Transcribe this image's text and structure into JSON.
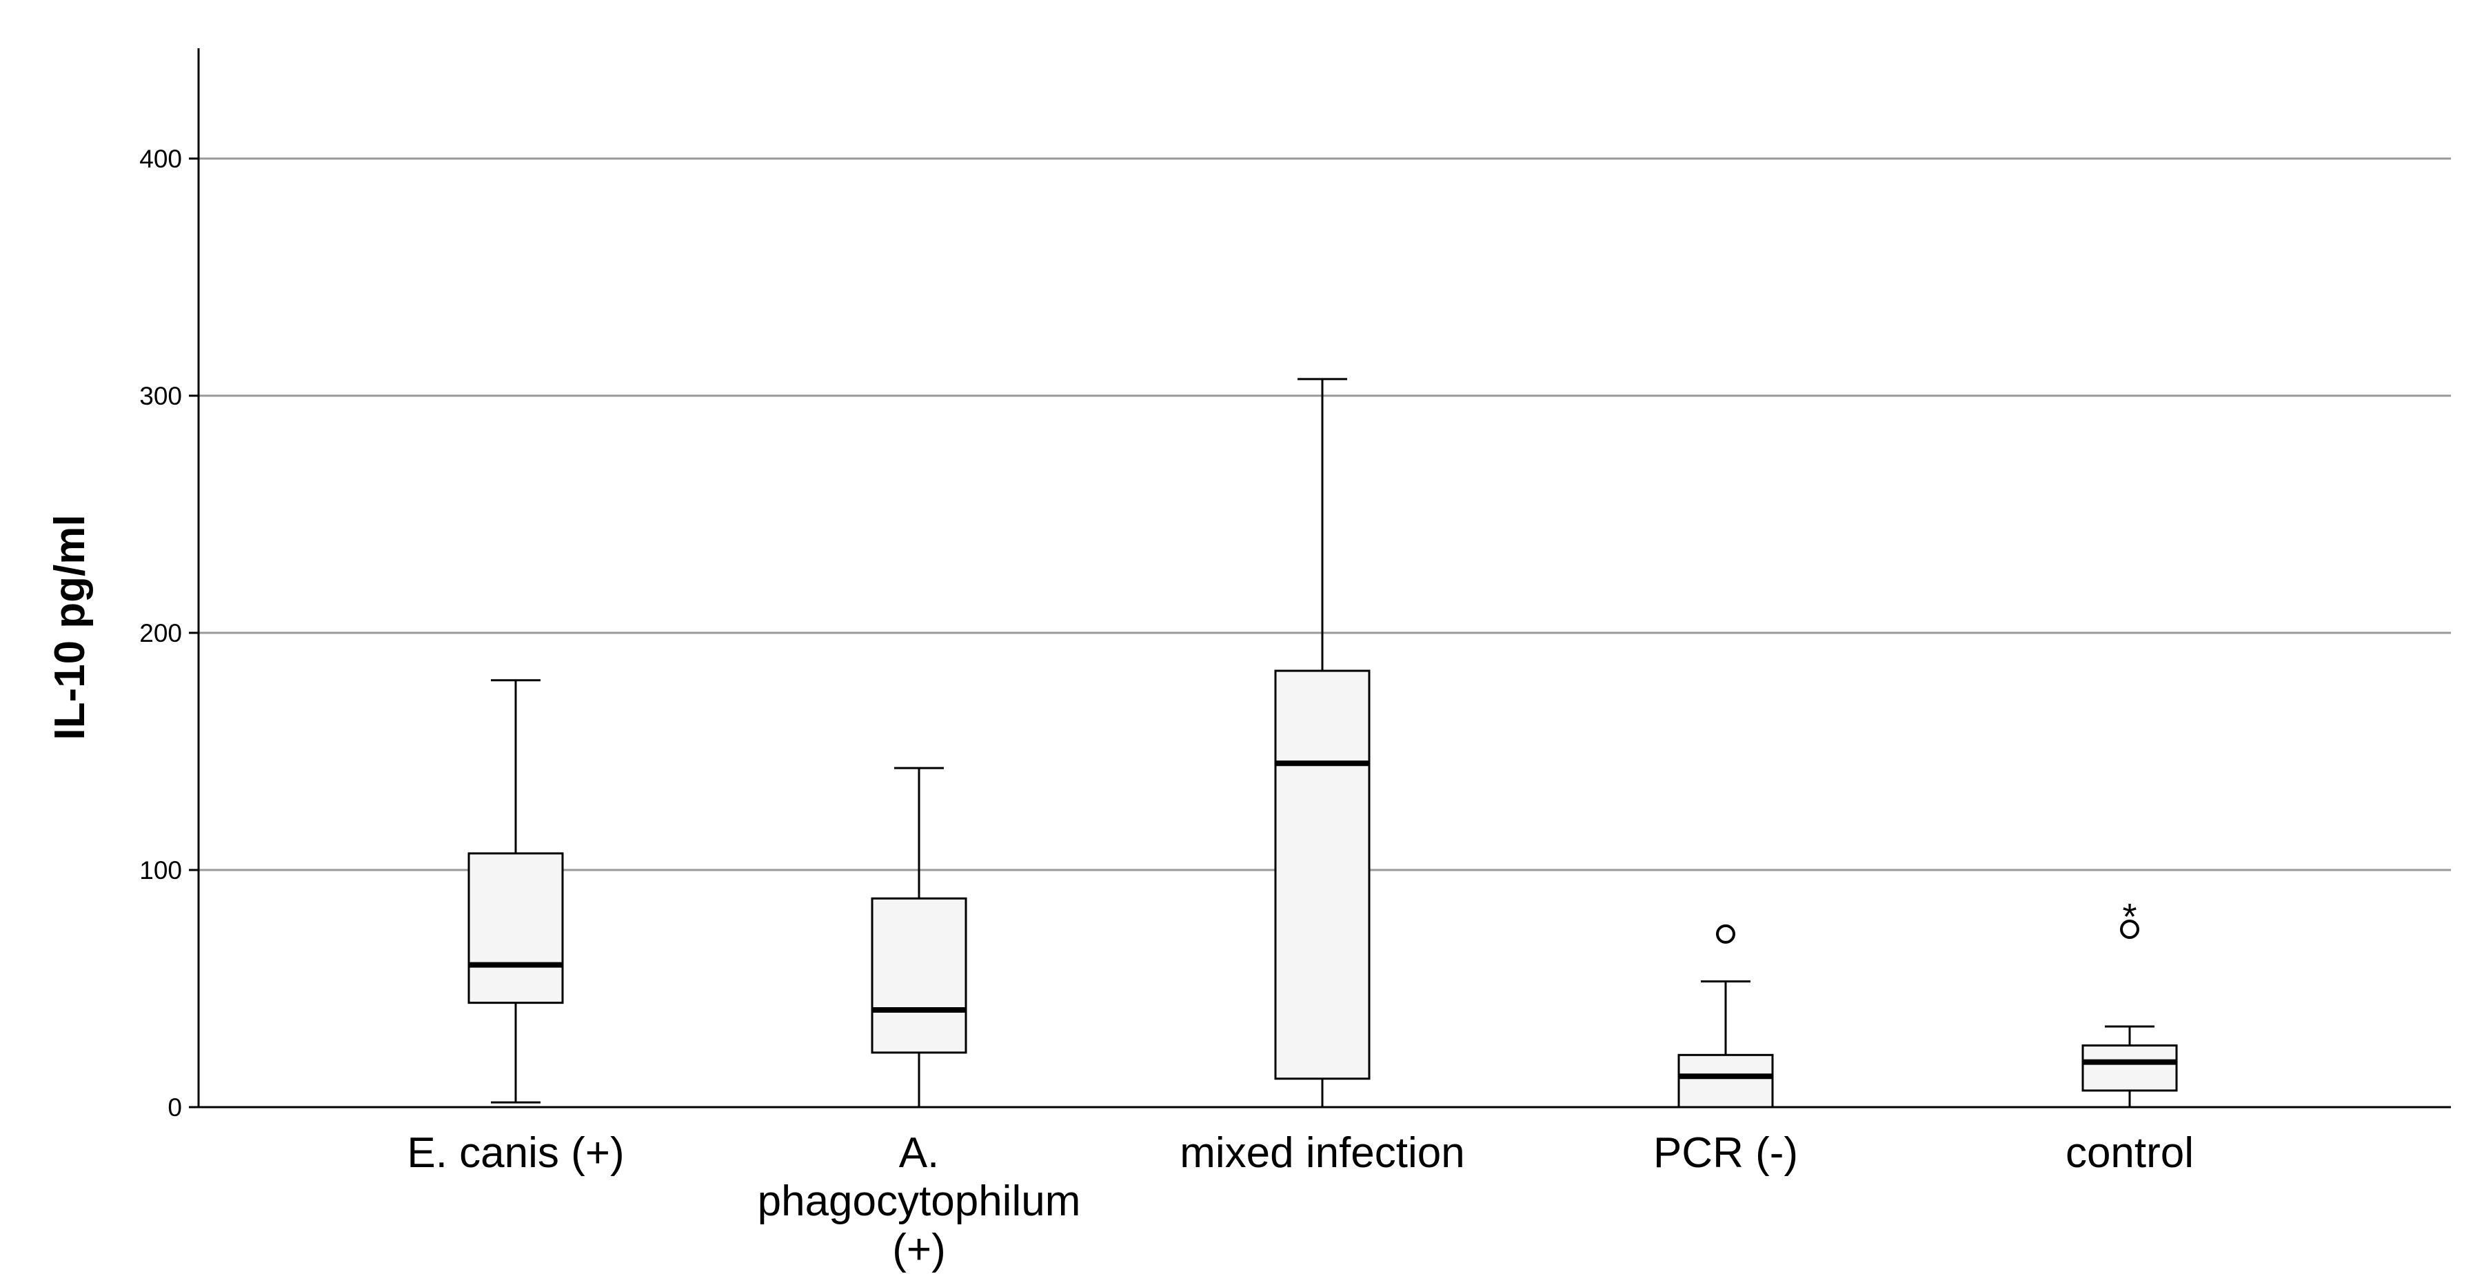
{
  "chart_data": {
    "type": "boxplot",
    "title": "",
    "xlabel": "",
    "ylabel": "IL-10 pg/ml",
    "ylim": [
      0,
      445
    ],
    "yticks": [
      0,
      100,
      200,
      300,
      400
    ],
    "grid": "horizontal",
    "categories": [
      "E. canis (+)",
      "A. phagocytophilum (+)",
      "mixed infection",
      "PCR (-)",
      "control"
    ],
    "category_label_lines": [
      [
        "E. canis (+)"
      ],
      [
        "A.",
        "phagocytophilum",
        "(+)"
      ],
      [
        "mixed infection"
      ],
      [
        "PCR (-)"
      ],
      [
        "control"
      ]
    ],
    "boxes": [
      {
        "category": "E. canis (+)",
        "whisker_low": 2,
        "q1": 44,
        "median": 60,
        "q3": 107,
        "whisker_high": 180,
        "outliers": [],
        "extremes": []
      },
      {
        "category": "A. phagocytophilum (+)",
        "whisker_low": 0,
        "q1": 23,
        "median": 41,
        "q3": 88,
        "whisker_high": 143,
        "outliers": [],
        "extremes": []
      },
      {
        "category": "mixed infection",
        "whisker_low": 0,
        "q1": 12,
        "median": 145,
        "q3": 184,
        "whisker_high": 307,
        "outliers": [],
        "extremes": []
      },
      {
        "category": "PCR (-)",
        "whisker_low": 0,
        "q1": 0,
        "median": 13,
        "q3": 22,
        "whisker_high": 53,
        "outliers": [
          73
        ],
        "extremes": []
      },
      {
        "category": "control",
        "whisker_low": 0,
        "q1": 7,
        "median": 19,
        "q3": 26,
        "whisker_high": 34,
        "outliers": [
          75
        ],
        "extremes": [
          82
        ]
      }
    ],
    "outlier_marker": "o",
    "extreme_marker": "*",
    "colors": {
      "box_fill": "#f5f5f5",
      "line": "#000000",
      "grid": "#999999",
      "background": "#ffffff"
    }
  }
}
